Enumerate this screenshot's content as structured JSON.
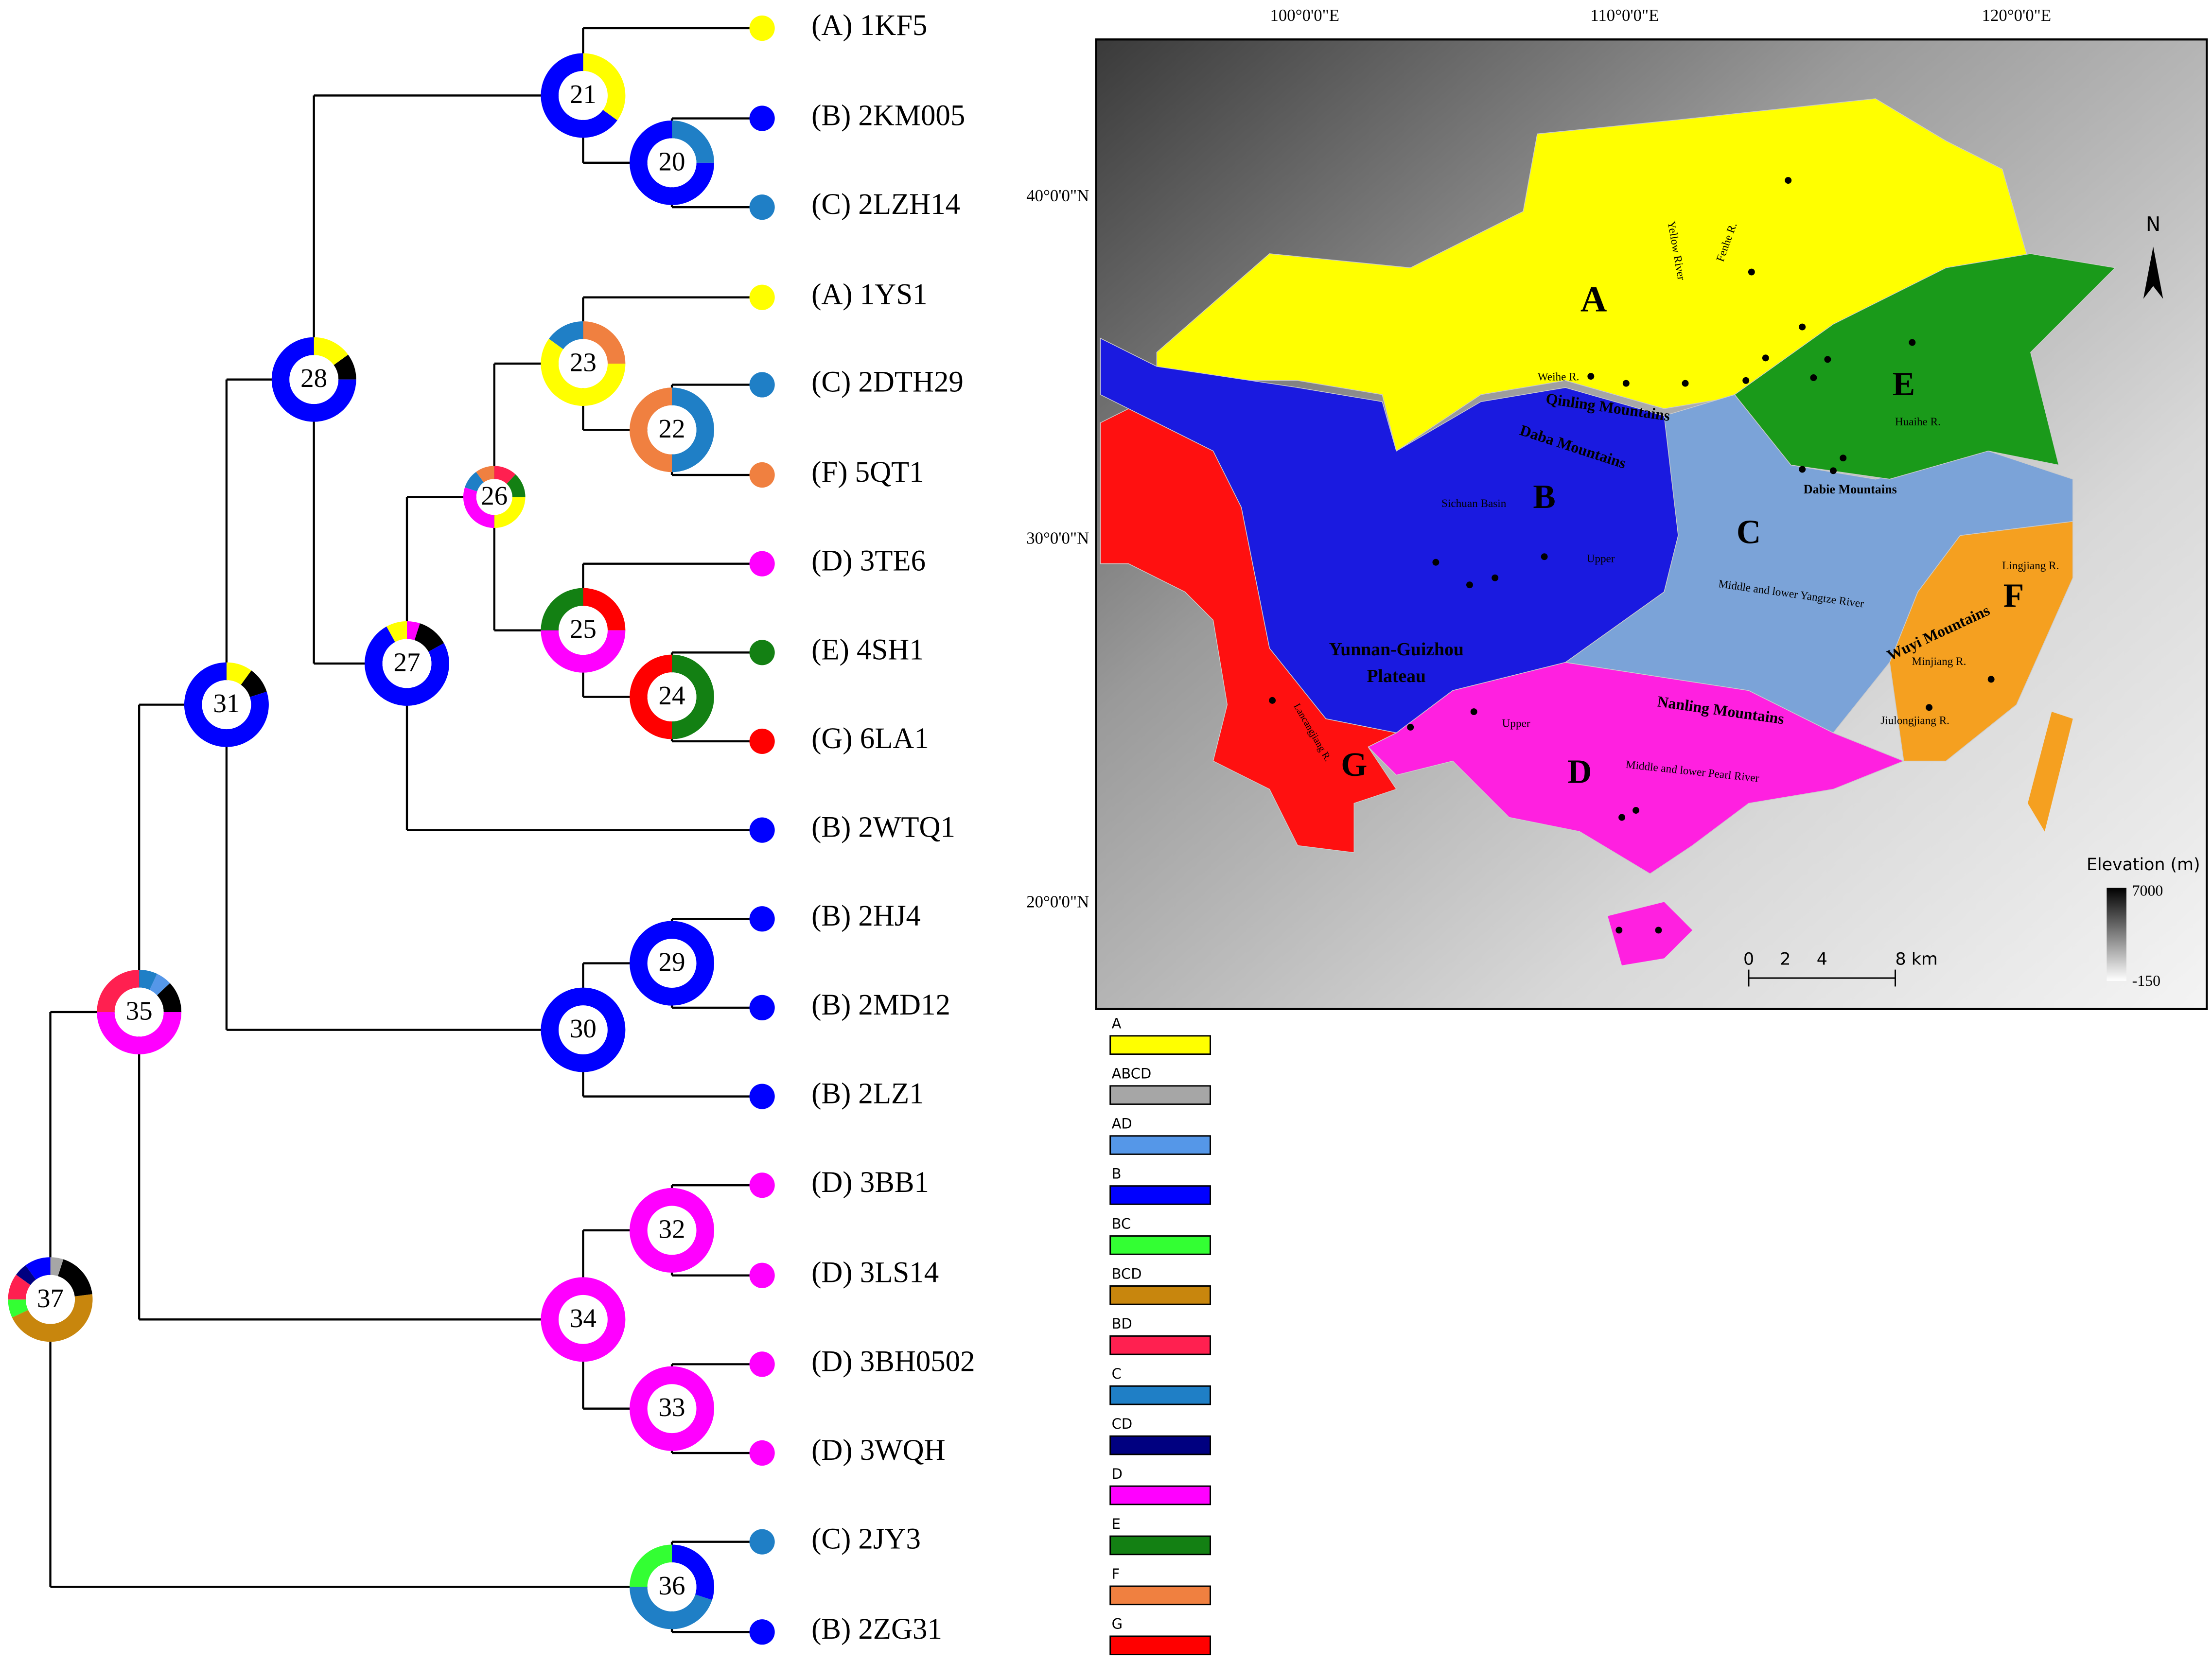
{
  "tree": {
    "tips": [
      {
        "label": "(A) 1KF5",
        "color": "#ffff00"
      },
      {
        "label": "(B) 2KM005",
        "color": "#0000ff"
      },
      {
        "label": "(C) 2LZH14",
        "color": "#1f7fc6"
      },
      {
        "label": "(A) 1YS1",
        "color": "#ffff00"
      },
      {
        "label": "(C) 2DTH29",
        "color": "#1f7fc6"
      },
      {
        "label": "(F) 5QT1",
        "color": "#f08040"
      },
      {
        "label": "(D) 3TE6",
        "color": "#ff00ff"
      },
      {
        "label": "(E) 4SH1",
        "color": "#138013"
      },
      {
        "label": "(G) 6LA1",
        "color": "#ff0000"
      },
      {
        "label": "(B) 2WTQ1",
        "color": "#0000ff"
      },
      {
        "label": "(B) 2HJ4",
        "color": "#0000ff"
      },
      {
        "label": "(B) 2MD12",
        "color": "#0000ff"
      },
      {
        "label": "(B) 2LZ1",
        "color": "#0000ff"
      },
      {
        "label": "(D) 3BB1",
        "color": "#ff00ff"
      },
      {
        "label": "(D) 3LS14",
        "color": "#ff00ff"
      },
      {
        "label": "(D) 3BH0502",
        "color": "#ff00ff"
      },
      {
        "label": "(D) 3WQH",
        "color": "#ff00ff"
      },
      {
        "label": "(C) 2JY3",
        "color": "#1f7fc6"
      },
      {
        "label": "(B) 2ZG31",
        "color": "#0000ff"
      }
    ],
    "nodes": [
      {
        "label": "21",
        "pie": [
          {
            "color": "#ffff00",
            "value": 35
          },
          {
            "color": "#0000ff",
            "value": 65
          }
        ]
      },
      {
        "label": "20",
        "pie": [
          {
            "color": "#1f7fc6",
            "value": 25
          },
          {
            "color": "#0000ff",
            "value": 75
          }
        ]
      },
      {
        "label": "28",
        "pie": [
          {
            "color": "#ffff00",
            "value": 15
          },
          {
            "color": "#000000",
            "value": 10
          },
          {
            "color": "#0000ff",
            "value": 75
          }
        ]
      },
      {
        "label": "23",
        "pie": [
          {
            "color": "#f08040",
            "value": 25
          },
          {
            "color": "#ffff00",
            "value": 60
          },
          {
            "color": "#1f7fc6",
            "value": 15
          }
        ]
      },
      {
        "label": "22",
        "pie": [
          {
            "color": "#1f7fc6",
            "value": 50
          },
          {
            "color": "#f08040",
            "value": 50
          }
        ]
      },
      {
        "label": "26",
        "pie": [
          {
            "color": "#ff2050",
            "value": 12
          },
          {
            "color": "#138013",
            "value": 13
          },
          {
            "color": "#ffff00",
            "value": 25
          },
          {
            "color": "#ff00ff",
            "value": 30
          },
          {
            "color": "#1f7fc6",
            "value": 10
          },
          {
            "color": "#f08040",
            "value": 10
          }
        ]
      },
      {
        "label": "27",
        "pie": [
          {
            "color": "#ff00ff",
            "value": 5
          },
          {
            "color": "#000000",
            "value": 12
          },
          {
            "color": "#0000ff",
            "value": 75
          },
          {
            "color": "#ffff00",
            "value": 8
          }
        ]
      },
      {
        "label": "25",
        "pie": [
          {
            "color": "#ff0000",
            "value": 25
          },
          {
            "color": "#ff00ff",
            "value": 50
          },
          {
            "color": "#138013",
            "value": 25
          }
        ]
      },
      {
        "label": "24",
        "pie": [
          {
            "color": "#138013",
            "value": 50
          },
          {
            "color": "#ff0000",
            "value": 50
          }
        ]
      },
      {
        "label": "31",
        "pie": [
          {
            "color": "#ffff00",
            "value": 10
          },
          {
            "color": "#000000",
            "value": 10
          },
          {
            "color": "#0000ff",
            "value": 80
          }
        ]
      },
      {
        "label": "35",
        "pie": [
          {
            "color": "#1f7fc6",
            "value": 7
          },
          {
            "color": "#5597e8",
            "value": 6
          },
          {
            "color": "#000000",
            "value": 12
          },
          {
            "color": "#ff00ff",
            "value": 50
          },
          {
            "color": "#ff2050",
            "value": 25
          }
        ]
      },
      {
        "label": "30",
        "pie": [
          {
            "color": "#0000ff",
            "value": 100
          }
        ]
      },
      {
        "label": "29",
        "pie": [
          {
            "color": "#0000ff",
            "value": 100
          }
        ]
      },
      {
        "label": "37",
        "pie": [
          {
            "color": "#a6a6a6",
            "value": 5
          },
          {
            "color": "#000000",
            "value": 18
          },
          {
            "color": "#c8860d",
            "value": 45
          },
          {
            "color": "#33ff33",
            "value": 7
          },
          {
            "color": "#ff2050",
            "value": 10
          },
          {
            "color": "#000080",
            "value": 5
          },
          {
            "color": "#0000ff",
            "value": 10
          }
        ]
      },
      {
        "label": "34",
        "pie": [
          {
            "color": "#ff00ff",
            "value": 100
          }
        ]
      },
      {
        "label": "32",
        "pie": [
          {
            "color": "#ff00ff",
            "value": 100
          }
        ]
      },
      {
        "label": "33",
        "pie": [
          {
            "color": "#ff00ff",
            "value": 100
          }
        ]
      },
      {
        "label": "36",
        "pie": [
          {
            "color": "#0000ff",
            "value": 30
          },
          {
            "color": "#1f7fc6",
            "value": 45
          },
          {
            "color": "#33ff33",
            "value": 25
          }
        ]
      }
    ]
  },
  "legend": [
    {
      "label": "A",
      "color": "#ffff00"
    },
    {
      "label": "ABCD",
      "color": "#a6a6a6"
    },
    {
      "label": "AD",
      "color": "#5597e8"
    },
    {
      "label": "B",
      "color": "#0000ff"
    },
    {
      "label": "BC",
      "color": "#33ff33"
    },
    {
      "label": "BCD",
      "color": "#c8860d"
    },
    {
      "label": "BD",
      "color": "#ff2050"
    },
    {
      "label": "C",
      "color": "#1f7fc6"
    },
    {
      "label": "CD",
      "color": "#000080"
    },
    {
      "label": "D",
      "color": "#ff00ff"
    },
    {
      "label": "E",
      "color": "#138013"
    },
    {
      "label": "F",
      "color": "#f08040"
    },
    {
      "label": "G",
      "color": "#ff0000"
    }
  ],
  "map": {
    "lon_labels": [
      "100°0'0\"E",
      "110°0'0\"E",
      "120°0'0\"E"
    ],
    "lat_labels": [
      "40°0'0\"N",
      "30°0'0\"N",
      "20°0'0\"N"
    ],
    "labels": [
      "A",
      "B",
      "C",
      "D",
      "E",
      "F",
      "G",
      "Qinling Mountains",
      "Daba Mountains",
      "Dabie Mountains",
      "Wuyi Mountains",
      "Nanling Mountains",
      "Yunnan-Guizhou",
      "Plateau",
      "Sichuan Basin",
      "Weihe R.",
      "Yellow River",
      "Fenhe R.",
      "Huaihe R.",
      "Upper",
      "Middle and lower Yangtze River",
      "Lingjiang R.",
      "Minjiang R.",
      "Jiulongjiang R.",
      "Upper",
      "Middle and lower Pearl River",
      "Lancangjiang R."
    ],
    "elevation": {
      "title": "Elevation (m)",
      "max": "7000",
      "min": "-150"
    },
    "scale": [
      "0",
      "2",
      "4",
      "8 km"
    ],
    "north": "N"
  }
}
